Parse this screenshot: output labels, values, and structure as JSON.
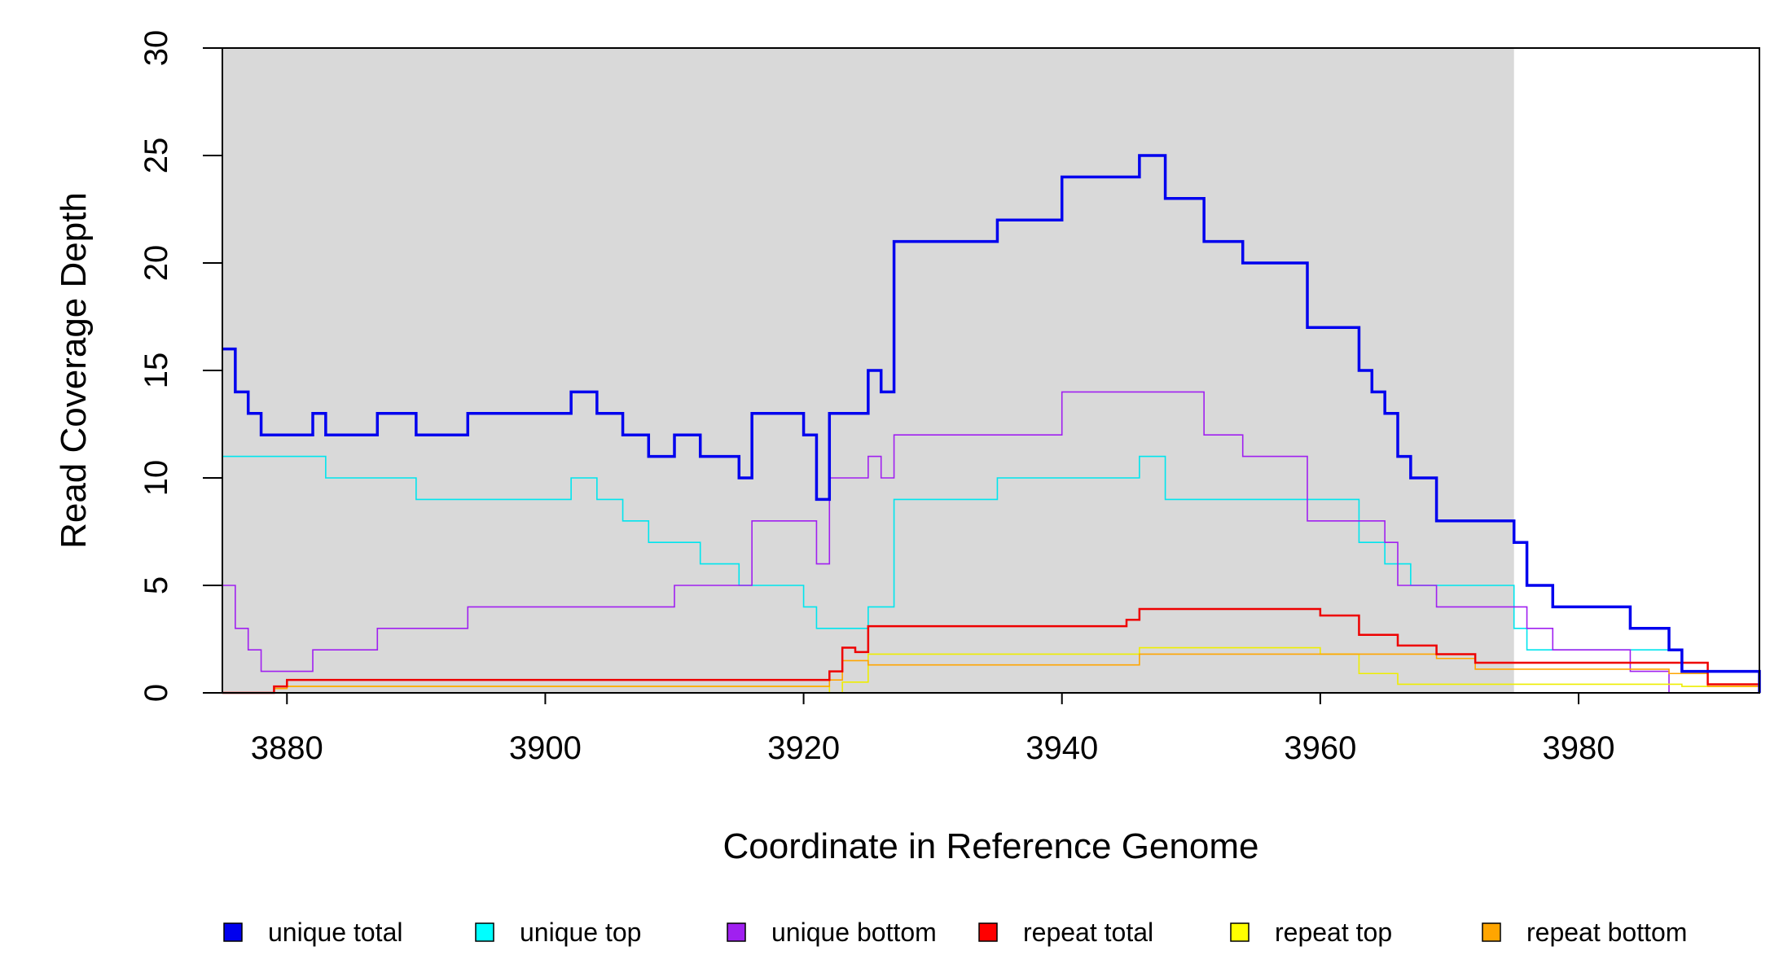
{
  "chart_data": {
    "type": "line",
    "step": true,
    "xlabel": "Coordinate in Reference Genome",
    "ylabel": "Read Coverage Depth",
    "xlim": [
      3875,
      3994
    ],
    "ylim": [
      0,
      30
    ],
    "x_ticks": [
      3880,
      3900,
      3920,
      3940,
      3960,
      3980
    ],
    "y_ticks": [
      0,
      5,
      10,
      15,
      20,
      25,
      30
    ],
    "grid": false,
    "legend_position": "bottom",
    "shaded_region": {
      "x_start": 3875,
      "x_end": 3975,
      "color": "#d9d9d9"
    },
    "series": [
      {
        "name": "unique total",
        "color": "#0000ee",
        "line_width": 3.5,
        "x": [
          3875,
          3876,
          3877,
          3878,
          3882,
          3883,
          3887,
          3890,
          3894,
          3902,
          3904,
          3906,
          3908,
          3910,
          3912,
          3915,
          3916,
          3920,
          3921,
          3922,
          3925,
          3926,
          3927,
          3935,
          3940,
          3946,
          3948,
          3951,
          3954,
          3959,
          3963,
          3964,
          3965,
          3966,
          3967,
          3969,
          3975,
          3976,
          3978,
          3984,
          3987,
          3988,
          3994
        ],
        "y": [
          16,
          14,
          13,
          12,
          13,
          12,
          13,
          12,
          13,
          14,
          13,
          12,
          11,
          12,
          11,
          10,
          13,
          12,
          9,
          13,
          15,
          14,
          21,
          22,
          24,
          25,
          23,
          21,
          20,
          17,
          15,
          14,
          13,
          11,
          10,
          8,
          7,
          5,
          4,
          3,
          2,
          1,
          0
        ]
      },
      {
        "name": "unique top",
        "color": "#00e5ee",
        "line_width": 1.6,
        "x": [
          3875,
          3883,
          3890,
          3902,
          3904,
          3906,
          3908,
          3912,
          3915,
          3920,
          3921,
          3922,
          3925,
          3927,
          3935,
          3946,
          3948,
          3963,
          3965,
          3967,
          3975,
          3976,
          3988,
          3994
        ],
        "y": [
          11,
          10,
          9,
          10,
          9,
          8,
          7,
          6,
          5,
          4,
          3,
          3,
          4,
          9,
          10,
          11,
          9,
          7,
          6,
          5,
          3,
          2,
          1,
          0
        ]
      },
      {
        "name": "unique bottom",
        "color": "#a020f0",
        "line_width": 1.6,
        "x": [
          3875,
          3876,
          3877,
          3878,
          3882,
          3887,
          3894,
          3910,
          3916,
          3921,
          3922,
          3925,
          3926,
          3927,
          3940,
          3951,
          3954,
          3959,
          3963,
          3965,
          3966,
          3969,
          3976,
          3978,
          3984,
          3987,
          3994
        ],
        "y": [
          5,
          3,
          2,
          1,
          2,
          3,
          4,
          5,
          8,
          6,
          10,
          11,
          10,
          12,
          14,
          12,
          11,
          8,
          8,
          7,
          5,
          4,
          3,
          2,
          1,
          0,
          0
        ]
      },
      {
        "name": "repeat total",
        "color": "#ee0000",
        "line_width": 2.5,
        "x": [
          3875,
          3879,
          3880,
          3916,
          3922,
          3923,
          3924,
          3925,
          3945,
          3946,
          3960,
          3963,
          3966,
          3969,
          3972,
          3987,
          3990,
          3994
        ],
        "y": [
          0,
          0.3,
          0.6,
          0.6,
          1.0,
          2.1,
          1.9,
          3.1,
          3.4,
          3.9,
          3.6,
          2.7,
          2.2,
          1.8,
          1.4,
          1.4,
          0.4,
          0.3
        ]
      },
      {
        "name": "repeat top",
        "color": "#eeee00",
        "line_width": 1.6,
        "x": [
          3875,
          3879,
          3880,
          3916,
          3922,
          3923,
          3925,
          3946,
          3960,
          3963,
          3966,
          3975,
          3988,
          3994
        ],
        "y": [
          0,
          0.2,
          0.3,
          0.3,
          0.0,
          0.5,
          1.8,
          2.1,
          1.8,
          0.9,
          0.4,
          0.4,
          0.3,
          0.3
        ]
      },
      {
        "name": "repeat bottom",
        "color": "#ffa500",
        "line_width": 1.6,
        "x": [
          3875,
          3879,
          3880,
          3916,
          3922,
          3923,
          3925,
          3946,
          3969,
          3972,
          3987,
          3990,
          3994
        ],
        "y": [
          0,
          0.2,
          0.3,
          0.3,
          0.6,
          1.5,
          1.3,
          1.8,
          1.6,
          1.1,
          0.9,
          0.3,
          0.3
        ]
      }
    ],
    "legend": [
      {
        "label": "unique total",
        "color": "#0000ee"
      },
      {
        "label": "unique top",
        "color": "#00ffff"
      },
      {
        "label": "unique bottom",
        "color": "#a020f0"
      },
      {
        "label": "repeat total",
        "color": "#ff0000"
      },
      {
        "label": "repeat top",
        "color": "#ffff00"
      },
      {
        "label": "repeat bottom",
        "color": "#ffa500"
      }
    ]
  }
}
